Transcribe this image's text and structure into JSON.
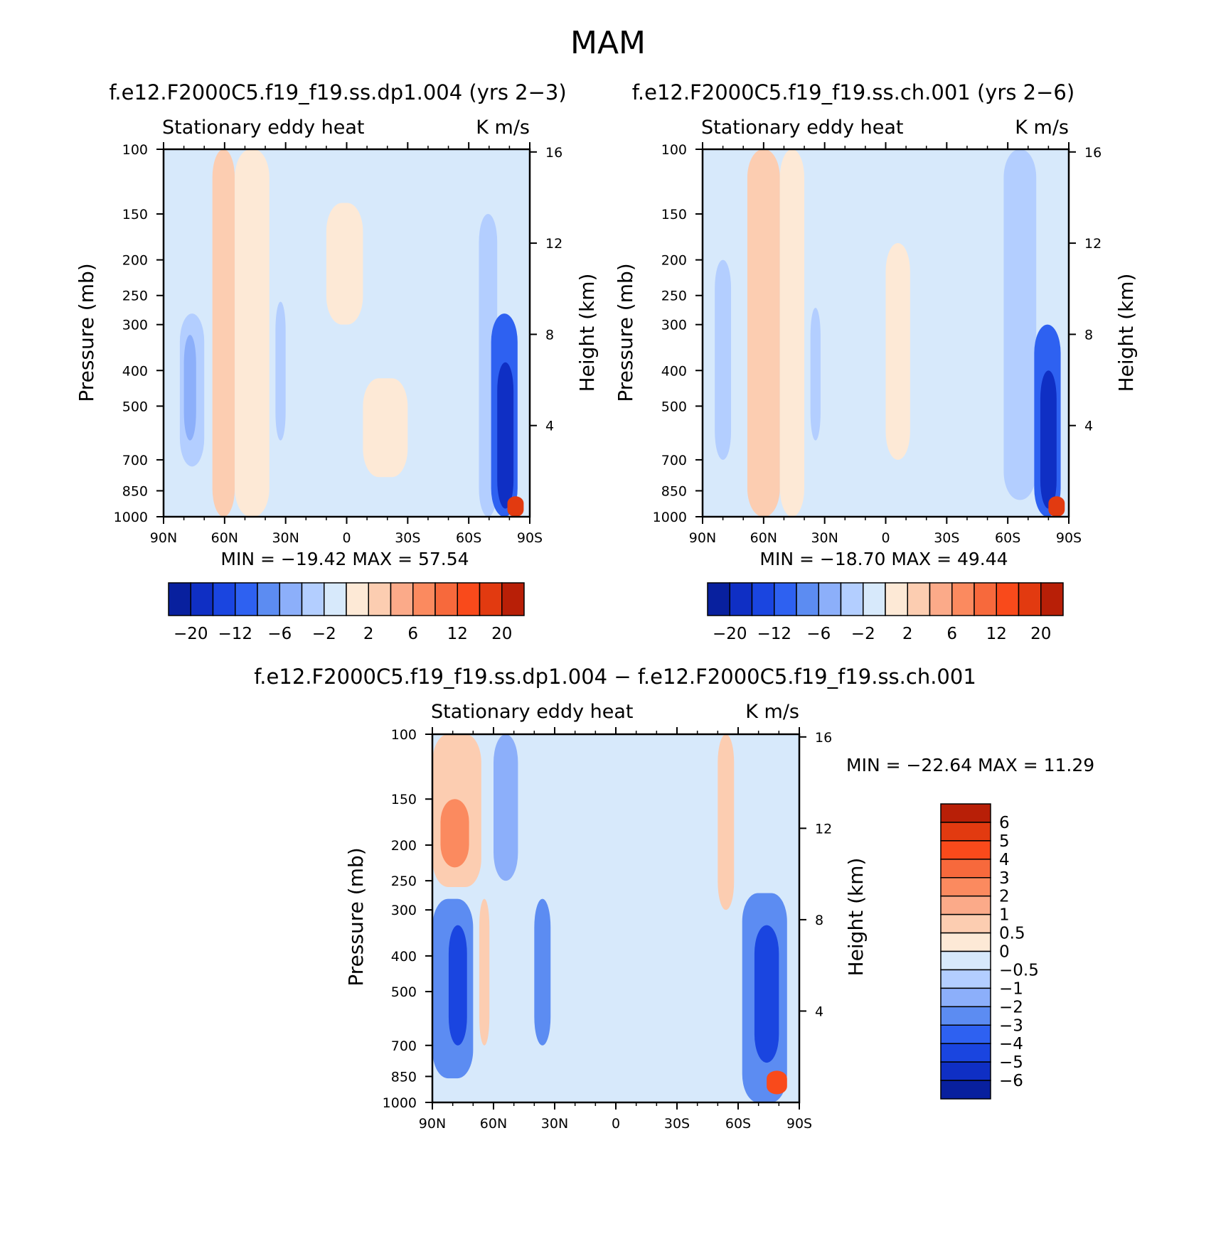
{
  "page_title": "MAM",
  "colors": {
    "neg": [
      "#d7e9fb",
      "#b3ceff",
      "#8caffa",
      "#5c8cf2",
      "#2e61f1",
      "#1a45e0",
      "#0f2fc4",
      "#08209e",
      "#000c7d"
    ],
    "pos": [
      "#fde9d6",
      "#fccdb1",
      "#fbaa89",
      "#fb8a5f",
      "#f7693c",
      "#f94a1b",
      "#e23a10",
      "#b81f07",
      "#800000"
    ]
  },
  "chart_data": [
    {
      "type": "heatmap",
      "title": "f.e12.F2000C5.f19_f19.ss.dp1.004 (yrs 2−3)",
      "left_string": "Stationary eddy heat",
      "right_string": "K m/s",
      "xlabel": "",
      "ylabel": "Pressure (mb)",
      "y2label": "Height (km)",
      "xlim": [
        90,
        -90
      ],
      "ylim": [
        1000,
        100
      ],
      "y_scale": "log",
      "x_ticks": [
        "90N",
        "60N",
        "30N",
        "0",
        "30S",
        "60S",
        "90S"
      ],
      "x_tick_values": [
        90,
        60,
        30,
        0,
        -30,
        -60,
        -90
      ],
      "y_ticks": [
        "100",
        "150",
        "200",
        "250",
        "300",
        "400",
        "500",
        "700",
        "850",
        "1000"
      ],
      "y_tick_values": [
        100,
        150,
        200,
        250,
        300,
        400,
        500,
        700,
        850,
        1000
      ],
      "y2_ticks": [
        "16",
        "12",
        "8",
        "4"
      ],
      "y2_tick_values": [
        16,
        12,
        8,
        4
      ],
      "min_label": "MIN = −19.42   MAX =   57.54",
      "min": -19.42,
      "max": 57.54,
      "colorbar": {
        "orientation": "horizontal",
        "levels": [
          -20,
          -16,
          -12,
          -8,
          -6,
          -4,
          -2,
          0,
          2,
          4,
          6,
          8,
          12,
          16,
          20
        ],
        "labels": [
          "−20",
          "−12",
          "−6",
          "−2",
          "2",
          "6",
          "12",
          "20"
        ]
      },
      "field": [
        {
          "lat": [
            70,
            82
          ],
          "p": [
            280,
            730
          ],
          "v": -2
        },
        {
          "lat": [
            74,
            80
          ],
          "p": [
            320,
            620
          ],
          "v": -4
        },
        {
          "lat": [
            55,
            66
          ],
          "p": [
            100,
            1000
          ],
          "v": 3
        },
        {
          "lat": [
            46,
            54
          ],
          "p": [
            280,
            830
          ],
          "v": 4
        },
        {
          "lat": [
            38,
            55
          ],
          "p": [
            100,
            1000
          ],
          "v": 1
        },
        {
          "lat": [
            30,
            35
          ],
          "p": [
            260,
            620
          ],
          "v": -2
        },
        {
          "lat": [
            10,
            -8
          ],
          "p": [
            140,
            300
          ],
          "v": 1
        },
        {
          "lat": [
            -30,
            -8
          ],
          "p": [
            420,
            780
          ],
          "v": 1
        },
        {
          "lat": [
            -65,
            -74
          ],
          "p": [
            150,
            1000
          ],
          "v": -2
        },
        {
          "lat": [
            -71,
            -84
          ],
          "p": [
            280,
            1000
          ],
          "v": -8
        },
        {
          "lat": [
            -74,
            -82
          ],
          "p": [
            380,
            950
          ],
          "v": -16
        },
        {
          "lat": [
            -79,
            -87
          ],
          "p": [
            880,
            1000
          ],
          "v": 20
        }
      ]
    },
    {
      "type": "heatmap",
      "title": "f.e12.F2000C5.f19_f19.ss.ch.001 (yrs 2−6)",
      "left_string": "Stationary eddy heat",
      "right_string": "K m/s",
      "xlabel": "",
      "ylabel": "Pressure (mb)",
      "y2label": "Height (km)",
      "xlim": [
        90,
        -90
      ],
      "ylim": [
        1000,
        100
      ],
      "y_scale": "log",
      "x_ticks": [
        "90N",
        "60N",
        "30N",
        "0",
        "30S",
        "60S",
        "90S"
      ],
      "x_tick_values": [
        90,
        60,
        30,
        0,
        -30,
        -60,
        -90
      ],
      "y_ticks": [
        "100",
        "150",
        "200",
        "250",
        "300",
        "400",
        "500",
        "700",
        "850",
        "1000"
      ],
      "y_tick_values": [
        100,
        150,
        200,
        250,
        300,
        400,
        500,
        700,
        850,
        1000
      ],
      "y2_ticks": [
        "16",
        "12",
        "8",
        "4"
      ],
      "y2_tick_values": [
        16,
        12,
        8,
        4
      ],
      "min_label": "MIN = −18.70   MAX =   49.44",
      "min": -18.7,
      "max": 49.44,
      "colorbar": {
        "orientation": "horizontal",
        "levels": [
          -20,
          -16,
          -12,
          -8,
          -6,
          -4,
          -2,
          0,
          2,
          4,
          6,
          8,
          12,
          16,
          20
        ],
        "labels": [
          "−20",
          "−12",
          "−6",
          "−2",
          "2",
          "6",
          "12",
          "20"
        ]
      },
      "field": [
        {
          "lat": [
            76,
            84
          ],
          "p": [
            200,
            700
          ],
          "v": -2
        },
        {
          "lat": [
            52,
            68
          ],
          "p": [
            100,
            1000
          ],
          "v": 3
        },
        {
          "lat": [
            55,
            62
          ],
          "p": [
            100,
            600
          ],
          "v": 4
        },
        {
          "lat": [
            40,
            52
          ],
          "p": [
            100,
            1000
          ],
          "v": 1
        },
        {
          "lat": [
            32,
            37
          ],
          "p": [
            270,
            620
          ],
          "v": -2
        },
        {
          "lat": [
            0,
            -12
          ],
          "p": [
            180,
            700
          ],
          "v": 1
        },
        {
          "lat": [
            -58,
            -74
          ],
          "p": [
            100,
            900
          ],
          "v": -2
        },
        {
          "lat": [
            -73,
            -86
          ],
          "p": [
            300,
            1000
          ],
          "v": -8
        },
        {
          "lat": [
            -76,
            -84
          ],
          "p": [
            400,
            950
          ],
          "v": -16
        },
        {
          "lat": [
            -80,
            -88
          ],
          "p": [
            880,
            1000
          ],
          "v": 20
        }
      ]
    },
    {
      "type": "heatmap",
      "title": "f.e12.F2000C5.f19_f19.ss.dp1.004 − f.e12.F2000C5.f19_f19.ss.ch.001",
      "left_string": "Stationary eddy heat",
      "right_string": "K m/s",
      "xlabel": "",
      "ylabel": "Pressure (mb)",
      "y2label": "Height (km)",
      "xlim": [
        90,
        -90
      ],
      "ylim": [
        1000,
        100
      ],
      "y_scale": "log",
      "x_ticks": [
        "90N",
        "60N",
        "30N",
        "0",
        "30S",
        "60S",
        "90S"
      ],
      "x_tick_values": [
        90,
        60,
        30,
        0,
        -30,
        -60,
        -90
      ],
      "y_ticks": [
        "100",
        "150",
        "200",
        "250",
        "300",
        "400",
        "500",
        "700",
        "850",
        "1000"
      ],
      "y_tick_values": [
        100,
        150,
        200,
        250,
        300,
        400,
        500,
        700,
        850,
        1000
      ],
      "y2_ticks": [
        "16",
        "12",
        "8",
        "4"
      ],
      "y2_tick_values": [
        16,
        12,
        8,
        4
      ],
      "min_label": "MIN = −22.64   MAX =   11.29",
      "min": -22.64,
      "max": 11.29,
      "colorbar": {
        "orientation": "vertical",
        "levels": [
          -6,
          -5,
          -4,
          -3,
          -2,
          -1,
          -0.5,
          0,
          0.5,
          1,
          2,
          3,
          4,
          5,
          6
        ],
        "labels": [
          "6",
          "5",
          "4",
          "3",
          "2",
          "1",
          "0.5",
          "0",
          "−0.5",
          "−1",
          "−2",
          "−3",
          "−4",
          "−5",
          "−6"
        ]
      },
      "field": [
        {
          "lat": [
            66,
            90
          ],
          "p": [
            100,
            260
          ],
          "v": 1
        },
        {
          "lat": [
            72,
            86
          ],
          "p": [
            150,
            230
          ],
          "v": 3
        },
        {
          "lat": [
            70,
            90
          ],
          "p": [
            280,
            860
          ],
          "v": -2
        },
        {
          "lat": [
            73,
            82
          ],
          "p": [
            330,
            700
          ],
          "v": -4
        },
        {
          "lat": [
            62,
            67
          ],
          "p": [
            280,
            700
          ],
          "v": 1
        },
        {
          "lat": [
            48,
            60
          ],
          "p": [
            100,
            250
          ],
          "v": -1
        },
        {
          "lat": [
            32,
            40
          ],
          "p": [
            280,
            700
          ],
          "v": -2
        },
        {
          "lat": [
            -50,
            -58
          ],
          "p": [
            100,
            300
          ],
          "v": 1
        },
        {
          "lat": [
            -62,
            -84
          ],
          "p": [
            270,
            1000
          ],
          "v": -2
        },
        {
          "lat": [
            -68,
            -80
          ],
          "p": [
            330,
            780
          ],
          "v": -4
        },
        {
          "lat": [
            -74,
            -84
          ],
          "p": [
            820,
            950
          ],
          "v": 5
        }
      ]
    }
  ]
}
